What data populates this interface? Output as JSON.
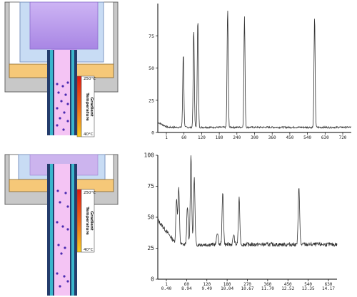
{
  "top_apparatus": {
    "gradient": {
      "hot": "250°C",
      "cold": "40°C",
      "label_line1": "Temperature",
      "label_line2": "Gradient"
    }
  },
  "bottom_apparatus": {
    "gradient": {
      "hot": "250°C",
      "cold": "40°C",
      "label_line1": "Temperature",
      "label_line2": "Gradient"
    }
  },
  "colors": {
    "oven_gray": "#c8c8c8",
    "chamber_blue": "#c8dcf4",
    "vapor_purple": "#b48ee6",
    "heater_orange": "#f6c878",
    "column_cyan": "#3ab6cc",
    "column_dark": "#243c6c",
    "tube_pink": "#f4c4f4",
    "particle": "#4a2ab0",
    "gradient_hot": "#e02010",
    "gradient_cold": "#f8c820"
  },
  "chart_data": [
    {
      "type": "line",
      "x_ticks": [
        "1",
        "60",
        "120",
        "180",
        "240",
        "300",
        "360",
        "450",
        "540",
        "630",
        "720"
      ],
      "y_ticks": [
        "0",
        "25",
        "50",
        "75"
      ],
      "peaks_x": [
        101,
        142,
        158,
        275,
        341,
        616
      ],
      "peaks_y": [
        62,
        80,
        88,
        96,
        90,
        90
      ],
      "baseline": 4,
      "xlim": [
        1,
        760
      ],
      "ylim": [
        0,
        100
      ]
    },
    {
      "type": "line",
      "x_ticks": [
        "1",
        "60",
        "120",
        "180",
        "270",
        "360",
        "450",
        "540",
        "630"
      ],
      "x_ticks_2": [
        "0.40",
        "8.94",
        "9.49",
        "10.04",
        "10.67",
        "11.70",
        "12.52",
        "13.35",
        "14.17"
      ],
      "y_ticks": [
        "0",
        "25",
        "50",
        "75",
        "100"
      ],
      "peaks_x": [
        70,
        78,
        110,
        123,
        135,
        220,
        240,
        280,
        300,
        520
      ],
      "peaks_y": [
        65,
        73,
        58,
        100,
        82,
        38,
        70,
        36,
        65,
        75
      ],
      "baseline": 28,
      "xlim": [
        1,
        660
      ],
      "ylim": [
        0,
        100
      ]
    }
  ]
}
